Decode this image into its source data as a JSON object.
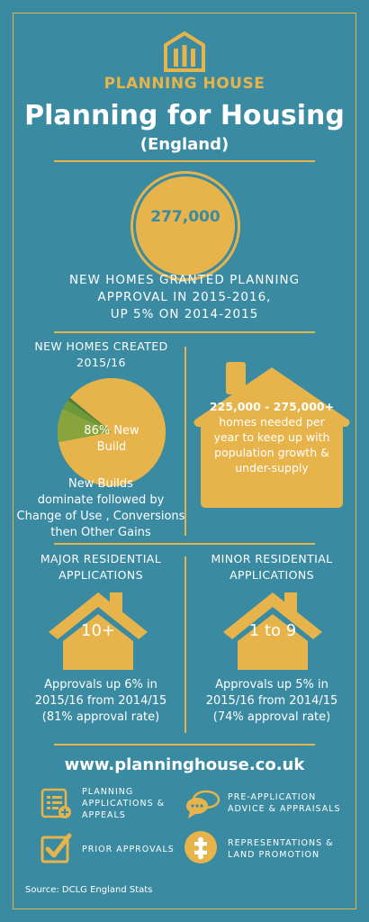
{
  "brand": {
    "name": "PLANNING HOUSE"
  },
  "title": "Planning for Housing",
  "subtitle": "(England)",
  "headline_stat": {
    "value": "277,000",
    "line1": "NEW HOMES GRANTED PLANNING",
    "line2": "APPROVAL IN 2015-2016,",
    "line3": "UP 5% ON 2014-2015"
  },
  "homes_created": {
    "title_line1": "NEW HOMES CREATED",
    "title_line2": "2015/16",
    "pie_label_line1": "86% New",
    "pie_label_line2": "Build",
    "pie_slices": [
      {
        "share": 0.86,
        "color": "#e7b44c"
      },
      {
        "share": 0.1,
        "color": "#8aa43d"
      },
      {
        "share": 0.03,
        "color": "#6c9a3a"
      },
      {
        "share": 0.01,
        "color": "#4f7f36"
      }
    ],
    "note_line1": "New Builds",
    "note_line2": "dominate followed by",
    "note_line3": "Change of Use , Conversions",
    "note_line4": "then Other Gains"
  },
  "homes_needed": {
    "line1": "225,000 - 275,000+",
    "line2": "homes needed per",
    "line3": "year to keep up with",
    "line4": "population growth &",
    "line5": "under-supply"
  },
  "major": {
    "title_line1": "MAJOR RESIDENTIAL",
    "title_line2": "APPLICATIONS",
    "house_label": "10+",
    "text_line1": "Approvals up 6% in",
    "text_line2": "2015/16 from 2014/15",
    "text_line3": "(81% approval rate)"
  },
  "minor": {
    "title_line1": "MINOR RESIDENTIAL",
    "title_line2": "APPLICATIONS",
    "house_label": "1 to 9",
    "text_line1": "Approvals up 5% in",
    "text_line2": "2015/16 from 2014/15",
    "text_line3": "(74% approval rate)"
  },
  "website": "www.planninghouse.co.uk",
  "services": [
    {
      "icon": "document-list-icon",
      "line1": "PLANNING",
      "line2": "APPLICATIONS &",
      "line3": "APPEALS"
    },
    {
      "icon": "speech-bubbles-icon",
      "line1": "PRE-APPLICATION",
      "line2": "ADVICE & APPRAISALS",
      "line3": ""
    },
    {
      "icon": "checkbox-icon",
      "line1": "PRIOR APPROVALS",
      "line2": "",
      "line3": ""
    },
    {
      "icon": "puzzle-icon",
      "line1": "REPRESENTATIONS &",
      "line2": "LAND PROMOTION",
      "line3": ""
    }
  ],
  "source": "Source: DCLG England Stats",
  "colors": {
    "background": "#3a8aa1",
    "accent": "#e7b44c",
    "text": "#ffffff"
  }
}
